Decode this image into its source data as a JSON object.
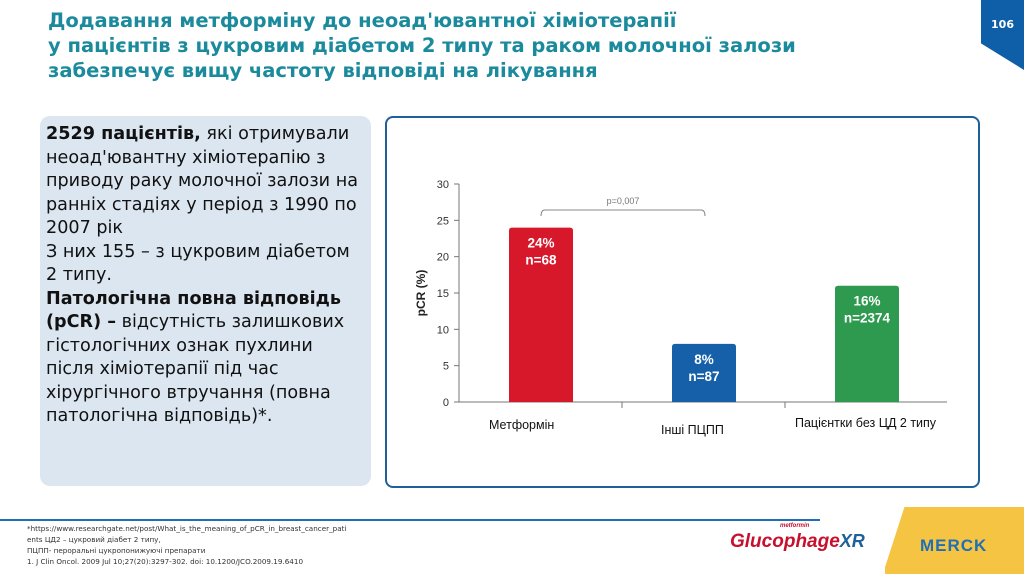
{
  "title": [
    "Додавання метформіну до неоад'ювантної хіміотерапії",
    "у пацієнтів з цукровим діабетом 2 типу та раком молочної залози",
    "забезпечує вищу частоту відповіді на лікування"
  ],
  "page_number": "106",
  "left_panel": {
    "bold1": "2529 пацієнтів,",
    "text1": " які отримували неоад'ювантну хіміотерапію з приводу раку молочної залози на ранніх стадіях у період з 1990 по 2007 рік",
    "text2": "З них 155 – з цукровим діабетом 2 типу.",
    "bold2": "Патологічна повна відповідь (pCR) –",
    "text3": " відсутність залишкових гістологічних ознак пухлини після хіміотерапії під час хірургічного втручання (повна патологічна відповідь)*."
  },
  "chart_data": {
    "type": "bar",
    "ylabel": "pCR (%)",
    "ylim": [
      0,
      30
    ],
    "yticks": [
      "0",
      "5",
      "10",
      "15",
      "20",
      "25",
      "30"
    ],
    "categories": [
      "Метформін",
      "Інші ПЦПП",
      "Пацієнтки без ЦД 2 типу"
    ],
    "values": [
      24,
      8,
      16
    ],
    "bar_labels": [
      [
        "24%",
        "n=68"
      ],
      [
        "8%",
        "n=87"
      ],
      [
        "16%",
        "n=2374"
      ]
    ],
    "colors": [
      "#d7182a",
      "#1560a8",
      "#2e9a50"
    ],
    "annotation": "p=0,007",
    "grid": false
  },
  "footnotes": {
    "link": "www.researchgate.net/post/What_is_the_meaning_of_pCR_in_breast_cancer_patients",
    "prefix": "*https://",
    "line1_suffix": "  ЦД2 – цукровий діабет 2 типу,",
    "line2": "ПЦПП- пероральні цукропонижуючі препарати",
    "line3": "1. J Clin Oncol. 2009 Jul 10;27(20):3297-302.  doi: 10.1200/JCO.2009.19.6410"
  },
  "logos": {
    "glucophage": "Glucophage",
    "glucophage_sub": "metformin",
    "glucophage_xr": "XR",
    "merck": "MERCK"
  }
}
